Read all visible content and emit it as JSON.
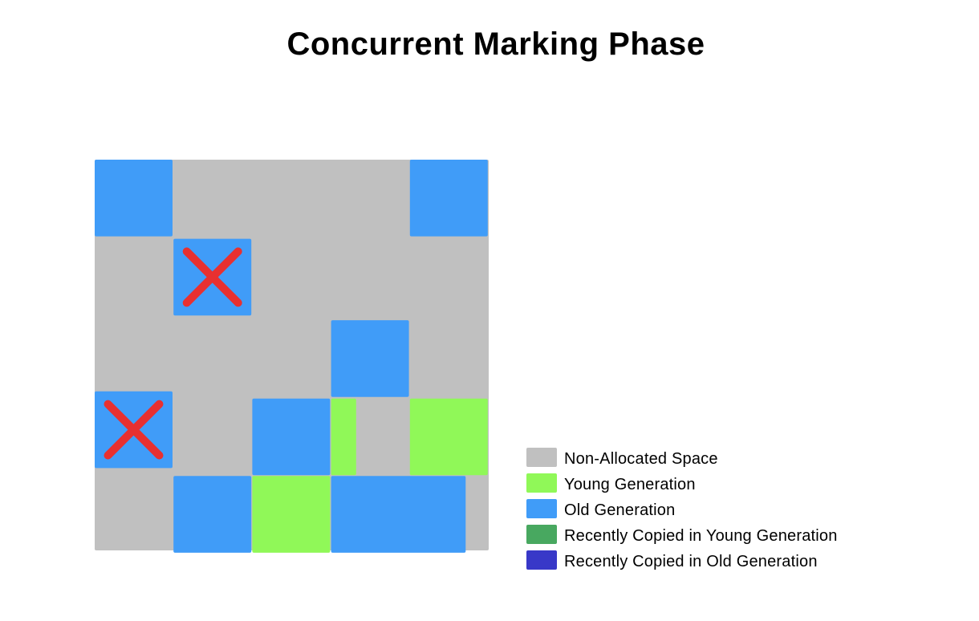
{
  "title": "Concurrent Marking Phase",
  "colors": {
    "non_allocated": "#c0c0c0",
    "young": "#90f858",
    "old": "#409cf8",
    "recent_young": "#48a860",
    "recent_old": "#3838c8",
    "x_mark": "#e83030"
  },
  "grid": {
    "columns": 5,
    "rows": 5,
    "blocks": [
      {
        "kind": "old",
        "col": 0,
        "row": 0,
        "cols": 1,
        "rows": 1,
        "collected": false
      },
      {
        "kind": "old",
        "col": 4,
        "row": 0,
        "cols": 1,
        "rows": 1,
        "collected": false
      },
      {
        "kind": "old",
        "col": 1,
        "row": 1,
        "cols": 1,
        "rows": 1,
        "collected": true
      },
      {
        "kind": "old",
        "col": 3,
        "row": 2.1,
        "cols": 1,
        "rows": 1,
        "collected": false
      },
      {
        "kind": "old",
        "col": 0,
        "row": 3,
        "cols": 1,
        "rows": 1,
        "collected": true
      },
      {
        "kind": "old",
        "col": 2,
        "row": 3.1,
        "cols": 1,
        "rows": 1,
        "collected": false
      },
      {
        "kind": "young",
        "col": 3,
        "row": 3.1,
        "cols": 0.33,
        "rows": 1,
        "collected": false
      },
      {
        "kind": "young",
        "col": 4,
        "row": 3.1,
        "cols": 1,
        "rows": 1,
        "collected": false
      },
      {
        "kind": "old",
        "col": 1,
        "row": 4.1,
        "cols": 1,
        "rows": 1,
        "collected": false
      },
      {
        "kind": "young",
        "col": 2,
        "row": 4.1,
        "cols": 1,
        "rows": 1,
        "collected": false
      },
      {
        "kind": "old",
        "col": 3,
        "row": 4.1,
        "cols": 1.72,
        "rows": 1,
        "collected": false
      }
    ]
  },
  "legend": [
    {
      "label": "Non-Allocated Space",
      "color": "#c0c0c0"
    },
    {
      "label": "Young Generation",
      "color": "#90f858"
    },
    {
      "label": "Old Generation",
      "color": "#409cf8"
    },
    {
      "label": "Recently Copied in Young Generation",
      "color": "#48a860"
    },
    {
      "label": "Recently Copied in Old Generation",
      "color": "#3838c8"
    }
  ]
}
